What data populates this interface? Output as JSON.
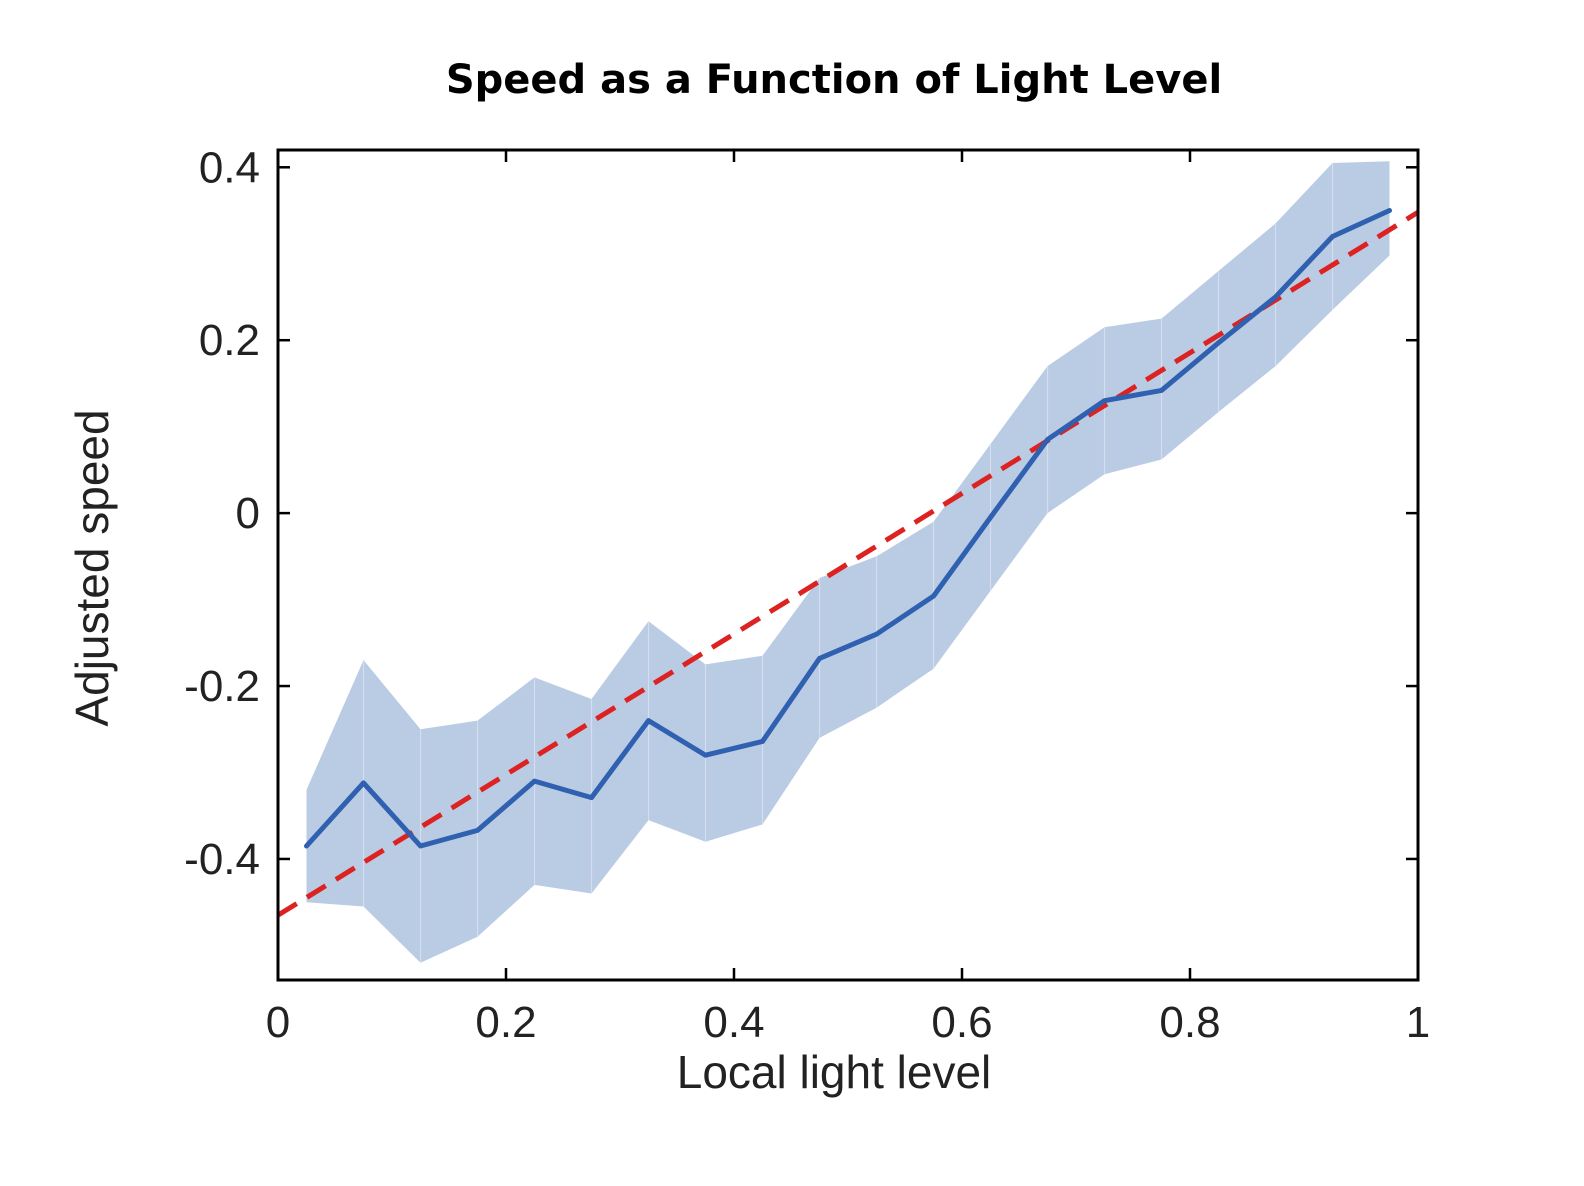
{
  "colors": {
    "mean_line": "#3060B0",
    "band_fill": "#BACBE4",
    "band_divider": "#D3DEEE",
    "fit_line": "#DD2222",
    "axis": "#000000"
  },
  "chart_data": {
    "type": "line",
    "title": "Speed as a Function of Light Level",
    "xlabel": "Local light level",
    "ylabel": "Adjusted speed",
    "xlim": [
      0,
      1
    ],
    "ylim": [
      -0.54,
      0.42
    ],
    "xticks": [
      0,
      0.2,
      0.4,
      0.6,
      0.8,
      1
    ],
    "xtick_labels": [
      "0",
      "0.2",
      "0.4",
      "0.6",
      "0.8",
      "1"
    ],
    "yticks": [
      -0.4,
      -0.2,
      0,
      0.2,
      0.4
    ],
    "ytick_labels": [
      "-0.4",
      "-0.2",
      "0",
      "0.2",
      "0.4"
    ],
    "grid": false,
    "x": [
      0.025,
      0.075,
      0.125,
      0.175,
      0.225,
      0.275,
      0.325,
      0.375,
      0.425,
      0.475,
      0.525,
      0.575,
      0.625,
      0.675,
      0.725,
      0.775,
      0.825,
      0.875,
      0.925,
      0.975
    ],
    "series": [
      {
        "kind": "mean",
        "values": [
          -0.385,
          -0.312,
          -0.385,
          -0.367,
          -0.31,
          -0.329,
          -0.24,
          -0.28,
          -0.264,
          -0.168,
          -0.14,
          -0.096,
          -0.005,
          0.085,
          0.13,
          0.142,
          0.197,
          0.25,
          0.32,
          0.35
        ]
      },
      {
        "kind": "band-upper",
        "values": [
          -0.32,
          -0.17,
          -0.25,
          -0.24,
          -0.19,
          -0.215,
          -0.125,
          -0.175,
          -0.165,
          -0.075,
          -0.05,
          -0.01,
          0.08,
          0.17,
          0.215,
          0.225,
          0.28,
          0.335,
          0.405,
          0.407
        ]
      },
      {
        "kind": "band-lower",
        "values": [
          -0.45,
          -0.455,
          -0.52,
          -0.49,
          -0.43,
          -0.44,
          -0.355,
          -0.38,
          -0.36,
          -0.26,
          -0.225,
          -0.18,
          -0.09,
          0.0,
          0.045,
          0.062,
          0.117,
          0.17,
          0.235,
          0.298
        ]
      },
      {
        "kind": "linear-fit",
        "x": [
          0,
          1
        ],
        "values": [
          -0.465,
          0.348
        ]
      }
    ]
  }
}
